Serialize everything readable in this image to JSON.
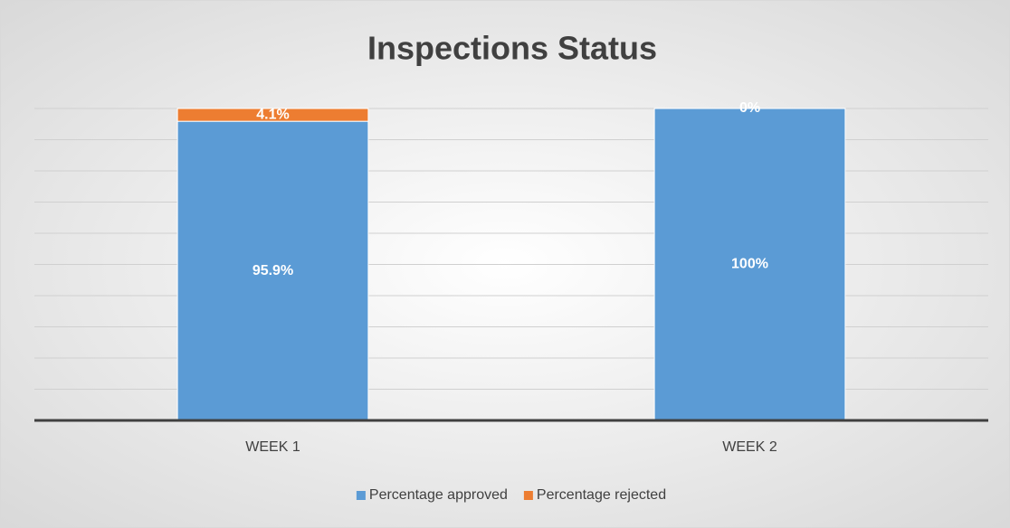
{
  "chart_data": {
    "type": "bar",
    "stacked": true,
    "title": "Inspections Status",
    "categories": [
      "WEEK 1",
      "WEEK 2"
    ],
    "series": [
      {
        "name": "Percentage approved",
        "color": "#5b9bd5",
        "values": [
          95.9,
          100
        ],
        "value_labels": [
          "95.9%",
          "100%"
        ]
      },
      {
        "name": "Percentage rejected",
        "color": "#ed7d31",
        "values": [
          4.1,
          0
        ],
        "value_labels": [
          "4.1%",
          "0%"
        ]
      }
    ],
    "ylim": [
      0,
      100
    ],
    "yticks": [
      0,
      10,
      20,
      30,
      40,
      50,
      60,
      70,
      80,
      90,
      100
    ],
    "grid": true,
    "legend": "bottom"
  }
}
